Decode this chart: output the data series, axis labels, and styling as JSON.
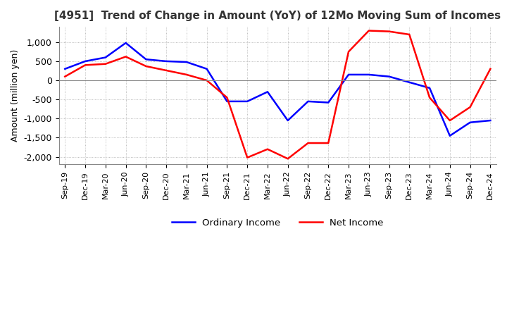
{
  "title": "[4951]  Trend of Change in Amount (YoY) of 12Mo Moving Sum of Incomes",
  "ylabel": "Amount (million yen)",
  "x_labels": [
    "Sep-19",
    "Dec-19",
    "Mar-20",
    "Jun-20",
    "Sep-20",
    "Dec-20",
    "Mar-21",
    "Jun-21",
    "Sep-21",
    "Dec-21",
    "Mar-22",
    "Jun-22",
    "Sep-22",
    "Dec-22",
    "Mar-23",
    "Jun-23",
    "Sep-23",
    "Dec-23",
    "Mar-24",
    "Jun-24",
    "Sep-24",
    "Dec-24"
  ],
  "ordinary_income": [
    300,
    500,
    600,
    980,
    550,
    500,
    480,
    300,
    -550,
    -550,
    -300,
    -1050,
    -550,
    -580,
    150,
    150,
    100,
    -50,
    -200,
    -1450,
    -1100,
    -1050
  ],
  "net_income": [
    100,
    400,
    430,
    620,
    370,
    260,
    150,
    0,
    -450,
    -2020,
    -1800,
    -2050,
    -1640,
    -1640,
    750,
    1300,
    1280,
    1200,
    -450,
    -1050,
    -700,
    300
  ],
  "ordinary_color": "#0000FF",
  "net_color": "#FF0000",
  "ylim": [
    -2200,
    1400
  ],
  "yticks": [
    -2000,
    -1500,
    -1000,
    -500,
    0,
    500,
    1000
  ],
  "background_color": "#FFFFFF",
  "grid_color": "#AAAAAA",
  "title_fontsize": 11,
  "legend_labels": [
    "Ordinary Income",
    "Net Income"
  ]
}
